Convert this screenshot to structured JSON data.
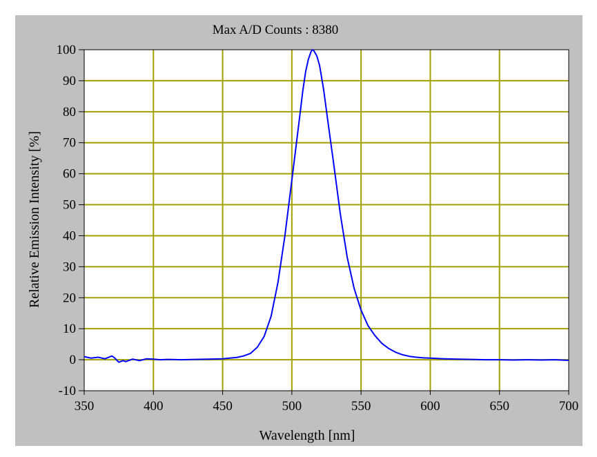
{
  "chart_data": {
    "type": "line",
    "title": "Max A/D Counts : 8380",
    "xlabel": "Wavelength [nm]",
    "ylabel": "Relative Emission Intensity [%]",
    "xlim": [
      350,
      700
    ],
    "ylim": [
      -10,
      100
    ],
    "x_ticks": [
      "350",
      "400",
      "450",
      "500",
      "550",
      "600",
      "650",
      "700"
    ],
    "y_ticks": [
      "-10",
      "0",
      "10",
      "20",
      "30",
      "40",
      "50",
      "60",
      "70",
      "80",
      "90",
      "100"
    ],
    "grid": true,
    "grid_color": "#a0a000",
    "plot_background": "#ffffff",
    "frame_background": "#c0c0c0",
    "series": [
      {
        "color": "#0000ff",
        "x": [
          350,
          355,
          360,
          365,
          370,
          372,
          375,
          378,
          380,
          385,
          390,
          395,
          400,
          405,
          410,
          420,
          430,
          440,
          450,
          455,
          460,
          465,
          470,
          475,
          480,
          485,
          490,
          495,
          500,
          505,
          508,
          510,
          512,
          514,
          515,
          516,
          518,
          520,
          523,
          526,
          530,
          535,
          540,
          545,
          550,
          555,
          560,
          565,
          570,
          575,
          580,
          585,
          590,
          595,
          600,
          610,
          620,
          630,
          640,
          650,
          660,
          670,
          680,
          690,
          700
        ],
        "values": [
          1.0,
          0.5,
          0.8,
          0.3,
          1.2,
          0.6,
          -0.8,
          -0.3,
          -0.6,
          0.2,
          -0.3,
          0.3,
          0.2,
          0.0,
          0.1,
          0.0,
          0.1,
          0.2,
          0.3,
          0.5,
          0.7,
          1.2,
          2.0,
          4.0,
          7.5,
          14.0,
          25.0,
          40.0,
          58.0,
          76.0,
          87.0,
          93.0,
          97.0,
          99.5,
          100.0,
          99.6,
          98.0,
          95.0,
          87.0,
          77.0,
          64.0,
          47.0,
          33.0,
          23.0,
          16.0,
          11.0,
          7.8,
          5.3,
          3.6,
          2.4,
          1.6,
          1.1,
          0.8,
          0.6,
          0.5,
          0.3,
          0.2,
          0.1,
          0.0,
          0.0,
          -0.1,
          0.0,
          -0.1,
          0.0,
          -0.2
        ]
      }
    ]
  }
}
